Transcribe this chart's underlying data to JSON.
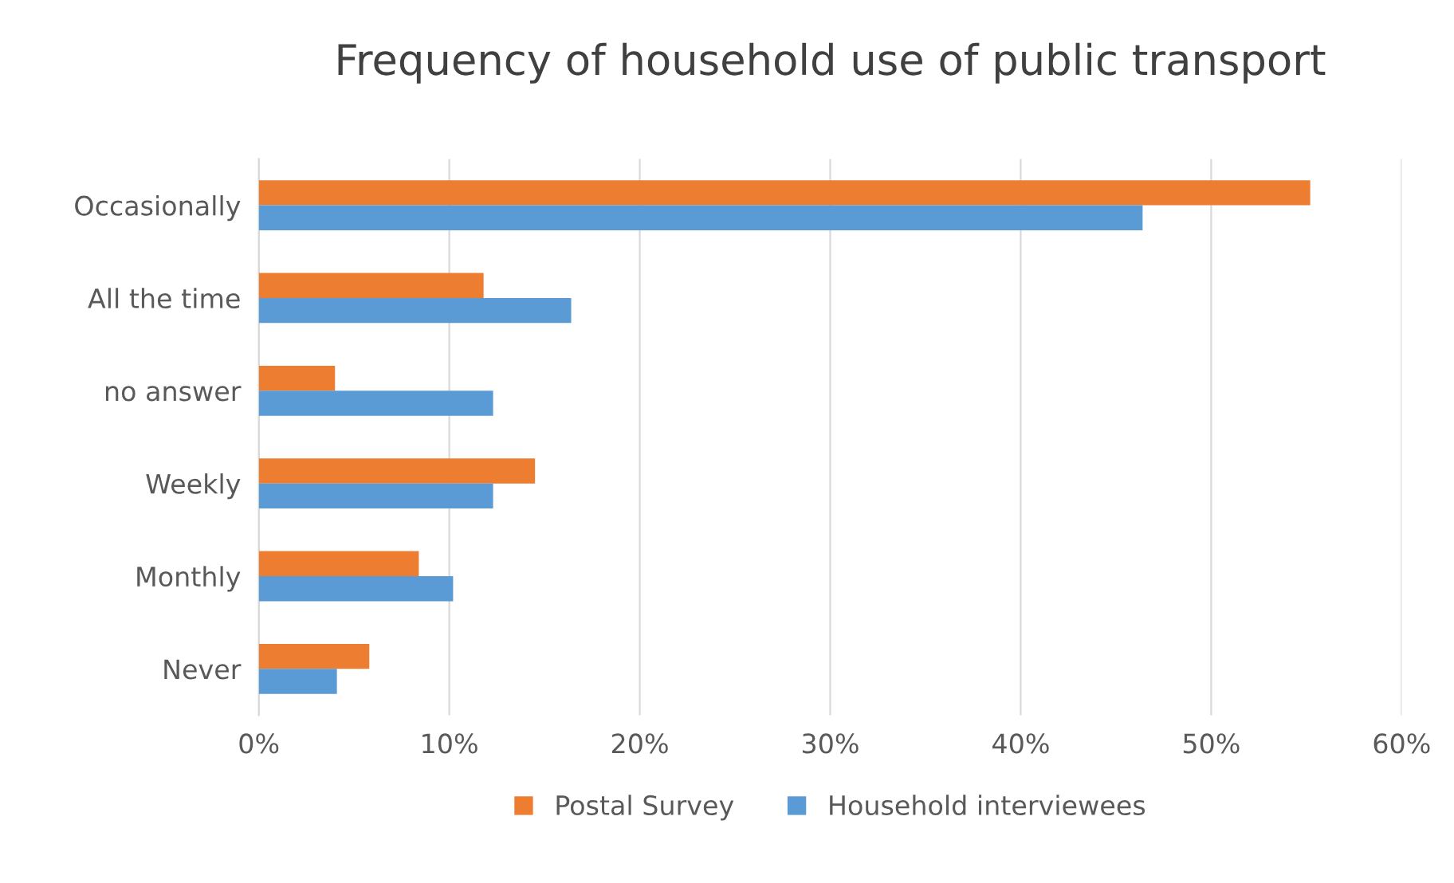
{
  "chart_data": {
    "type": "bar",
    "orientation": "horizontal",
    "title": "Frequency of household use of public transport",
    "categories": [
      "Occasionally",
      "All the time",
      "no answer",
      "Weekly",
      "Monthly",
      "Never"
    ],
    "series": [
      {
        "name": "Postal Survey",
        "color": "#ed7d31",
        "values": [
          55.2,
          11.8,
          4.0,
          14.5,
          8.4,
          5.8
        ]
      },
      {
        "name": "Household interviewees",
        "color": "#5b9bd5",
        "values": [
          46.4,
          16.4,
          12.3,
          12.3,
          10.2,
          4.1
        ]
      }
    ],
    "xlim": [
      0,
      60
    ],
    "xticks": [
      {
        "value": 0,
        "label": "0%"
      },
      {
        "value": 10,
        "label": "10%"
      },
      {
        "value": 20,
        "label": "20%"
      },
      {
        "value": 30,
        "label": "30%"
      },
      {
        "value": 40,
        "label": "40%"
      },
      {
        "value": 50,
        "label": "50%"
      },
      {
        "value": 60,
        "label": "60%"
      }
    ],
    "grid": "x",
    "legend": "bottom"
  }
}
